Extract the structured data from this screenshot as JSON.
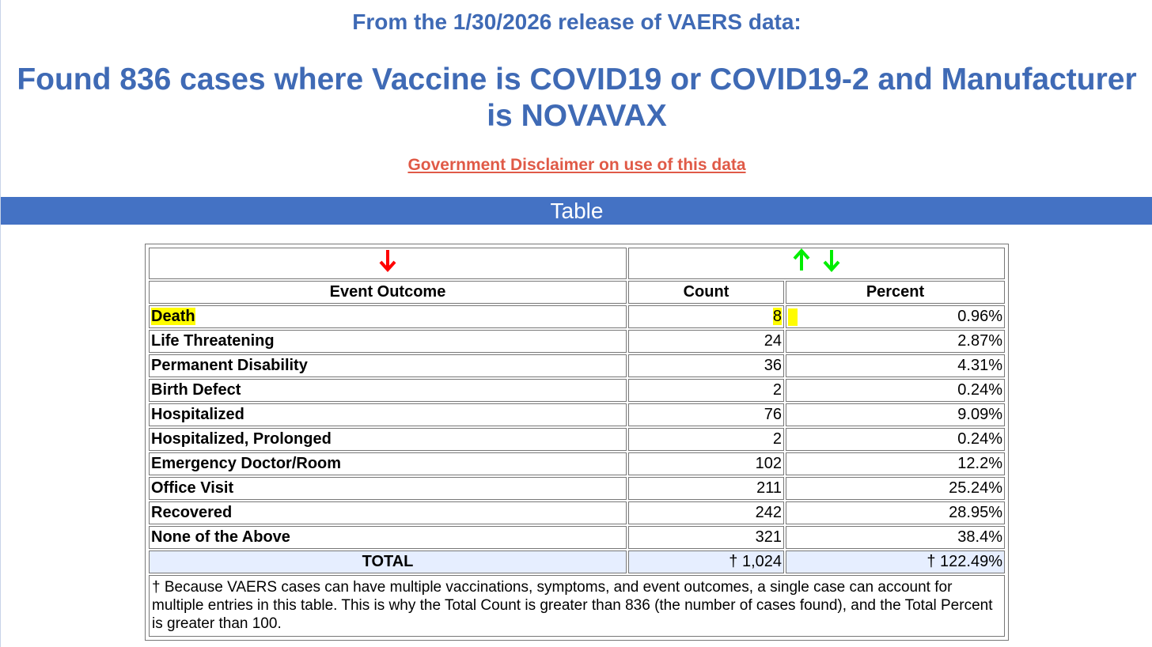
{
  "release_line": "From the 1/30/2026 release of VAERS data:",
  "headline": "Found 836 cases where Vaccine is COVID19 or COVID19-2 and Manufacturer is NOVAVAX",
  "disclaimer_link": "Government Disclaimer on use of this data",
  "section_title": "Table",
  "colors": {
    "heading_blue": "#3f6ab5",
    "bar_blue": "#4472c4",
    "link_red": "#e05a47",
    "sort_active": "#ff0000",
    "sort_available": "#00ee00",
    "highlight": "#fffc00",
    "total_row_bg": "#e6eeff"
  },
  "sort_controls": {
    "outcome_sort_icon": "arrow-down-icon (red, active)",
    "count_sort_icons": [
      "arrow-up-icon (green)",
      "arrow-down-icon (green)"
    ]
  },
  "table": {
    "headers": [
      "Event Outcome",
      "Count",
      "Percent"
    ],
    "rows": [
      {
        "outcome": "Death",
        "count": "8",
        "percent": "0.96%"
      },
      {
        "outcome": "Life Threatening",
        "count": "24",
        "percent": "2.87%"
      },
      {
        "outcome": "Permanent Disability",
        "count": "36",
        "percent": "4.31%"
      },
      {
        "outcome": "Birth Defect",
        "count": "2",
        "percent": "0.24%"
      },
      {
        "outcome": "Hospitalized",
        "count": "76",
        "percent": "9.09%"
      },
      {
        "outcome": "Hospitalized, Prolonged",
        "count": "2",
        "percent": "0.24%"
      },
      {
        "outcome": "Emergency Doctor/Room",
        "count": "102",
        "percent": "12.2%"
      },
      {
        "outcome": "Office Visit",
        "count": "211",
        "percent": "25.24%"
      },
      {
        "outcome": "Recovered",
        "count": "242",
        "percent": "28.95%"
      },
      {
        "outcome": "None of the Above",
        "count": "321",
        "percent": "38.4%"
      }
    ],
    "total": {
      "label": "TOTAL",
      "count": "† 1,024",
      "percent": "† 122.49%"
    },
    "footnote": "† Because VAERS cases can have multiple vaccinations, symptoms, and event outcomes, a single case can account for multiple entries in this table. This is why the Total Count is greater than 836 (the number of cases found), and the Total Percent is greater than 100."
  }
}
